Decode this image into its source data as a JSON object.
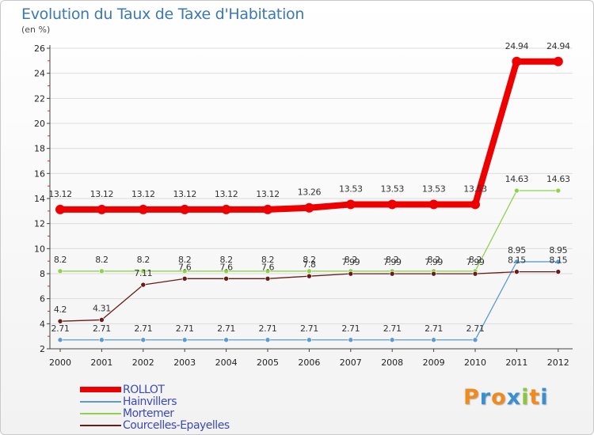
{
  "title": "Evolution du Taux de Taxe d'Habitation",
  "unit": "(en %)",
  "logo": {
    "text": "Proxiti",
    "colors": [
      "#f08a1c",
      "#3a8fd0",
      "#f08a1c",
      "#3a8fd0",
      "#8cc63e",
      "#f08a1c",
      "#3a8fd0"
    ]
  },
  "chart_data": {
    "type": "line",
    "x": [
      "2000",
      "2001",
      "2002",
      "2003",
      "2004",
      "2005",
      "2006",
      "2007",
      "2008",
      "2009",
      "2010",
      "2011",
      "2012"
    ],
    "ylim": [
      2,
      26
    ],
    "yticks": [
      2,
      4,
      6,
      8,
      10,
      12,
      14,
      16,
      18,
      20,
      22,
      24,
      26
    ],
    "grid": "horizontal",
    "legend_position": "bottom-left",
    "series": [
      {
        "name": "ROLLOT",
        "color": "#ee0000",
        "values": [
          13.12,
          13.12,
          13.12,
          13.12,
          13.12,
          13.12,
          13.26,
          13.53,
          13.53,
          13.53,
          13.53,
          24.94,
          24.94
        ],
        "labels": [
          "13.12",
          "13.12",
          "13.12",
          "13.12",
          "13.12",
          "13.12",
          "13.26",
          "13.53",
          "13.53",
          "13.53",
          "13.53",
          "24.94",
          "24.94"
        ]
      },
      {
        "name": "Hainvillers",
        "color": "#5b9bd5",
        "values": [
          2.71,
          2.71,
          2.71,
          2.71,
          2.71,
          2.71,
          2.71,
          2.71,
          2.71,
          2.71,
          2.71,
          8.95,
          8.95
        ],
        "labels": [
          "2.71",
          "2.71",
          "2.71",
          "2.71",
          "2.71",
          "2.71",
          "2.71",
          "2.71",
          "2.71",
          "2.71",
          "2.71",
          "8.95",
          "8.95"
        ]
      },
      {
        "name": "Mortemer",
        "color": "#8fd14f",
        "values": [
          8.2,
          8.2,
          8.2,
          8.2,
          8.2,
          8.2,
          8.2,
          8.2,
          8.2,
          8.2,
          8.2,
          14.63,
          14.63
        ],
        "labels": [
          "8.2",
          "8.2",
          "8.2",
          "8.2",
          "8.2",
          "8.2",
          "8.2",
          "8.2",
          "8.2",
          "8.2",
          "8.2",
          "14.63",
          "14.63"
        ]
      },
      {
        "name": "Courcelles-Epayelles",
        "color": "#6b1a1a",
        "values": [
          4.2,
          4.31,
          7.11,
          7.6,
          7.6,
          7.6,
          7.8,
          7.99,
          7.99,
          7.99,
          7.99,
          8.15,
          8.15
        ],
        "labels": [
          "4.2",
          "4.31",
          "7.11",
          "7.6",
          "7.6",
          "7.6",
          "7.8",
          "7.99",
          "7.99",
          "7.99",
          "7.99",
          "8.15",
          "8.15"
        ]
      }
    ]
  }
}
